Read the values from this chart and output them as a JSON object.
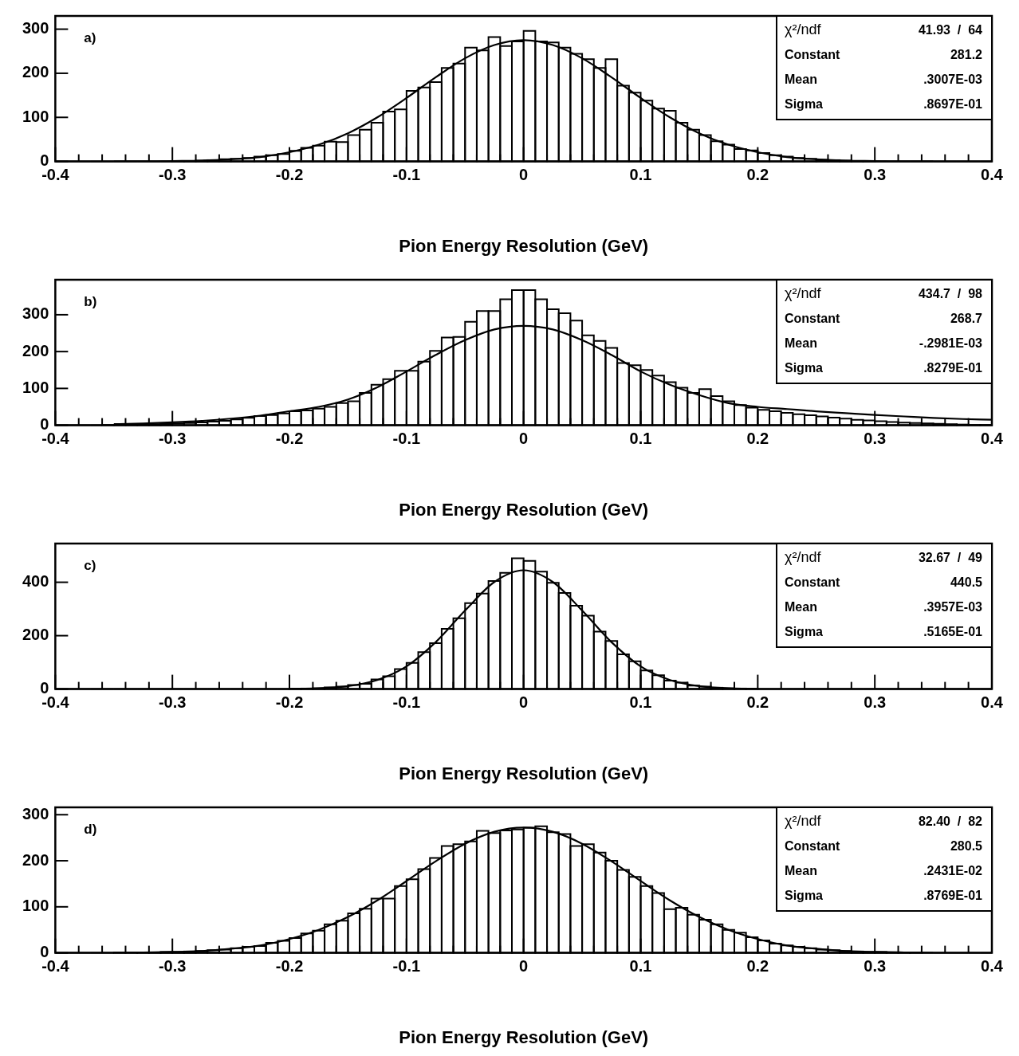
{
  "chart_data": [
    {
      "type": "histogram",
      "xlabel": "Pion Energy Resolution (GeV)",
      "annotations": [
        "a)",
        "χ²/ndf",
        "41.93  /  64",
        "Constant",
        "281.2",
        "Mean",
        ".3007E-03",
        "Sigma",
        ".8697E-01"
      ],
      "bins": [
        -0.4,
        -0.39,
        -0.38,
        -0.37,
        -0.36,
        -0.35,
        -0.34,
        -0.33,
        -0.32,
        -0.31,
        -0.3,
        -0.29,
        -0.28,
        -0.27,
        -0.26,
        -0.25,
        -0.24,
        -0.23,
        -0.22,
        -0.21,
        -0.2,
        -0.19,
        -0.18,
        -0.17,
        -0.16,
        -0.15,
        -0.14,
        -0.13,
        -0.12,
        -0.11,
        -0.1,
        -0.09,
        -0.08,
        -0.07,
        -0.06,
        -0.05,
        -0.04,
        -0.03,
        -0.02,
        -0.01,
        0,
        0.01,
        0.02,
        0.03,
        0.04,
        0.05,
        0.06,
        0.07,
        0.08,
        0.09,
        0.1,
        0.11,
        0.12,
        0.13,
        0.14,
        0.15,
        0.16,
        0.17,
        0.18,
        0.19,
        0.2,
        0.21,
        0.22,
        0.23,
        0.24,
        0.25,
        0.26,
        0.27,
        0.28,
        0.29,
        0.3,
        0.31,
        0.32,
        0.33,
        0.34,
        0.35,
        0.36,
        0.37,
        0.38,
        0.39,
        0.4
      ],
      "series": [
        {
          "type": "histogram",
          "color": "#000000",
          "values": [
            0,
            0,
            0,
            0,
            0,
            0,
            0,
            0,
            0,
            0,
            1,
            1,
            2,
            3,
            5,
            6,
            8,
            11,
            14,
            17,
            24,
            31,
            36,
            45,
            44,
            60,
            72,
            88,
            113,
            118,
            160,
            168,
            180,
            212,
            222,
            258,
            252,
            282,
            262,
            272,
            296,
            272,
            270,
            258,
            244,
            232,
            212,
            232,
            172,
            156,
            138,
            120,
            115,
            88,
            72,
            60,
            46,
            38,
            28,
            25,
            19,
            14,
            11,
            8,
            6,
            4,
            3,
            2,
            1,
            1,
            0,
            0,
            0,
            0,
            0,
            0,
            0,
            0,
            0,
            0
          ]
        },
        {
          "type": "line",
          "color": "#000000",
          "x": [
            -0.35,
            -0.325,
            -0.3,
            -0.275,
            -0.25,
            -0.225,
            -0.2,
            -0.175,
            -0.15,
            -0.125,
            -0.1,
            -0.075,
            -0.05,
            -0.025,
            0,
            0.025,
            0.05,
            0.075,
            0.1,
            0.125,
            0.15,
            0.175,
            0.2,
            0.225,
            0.25,
            0.275,
            0.3,
            0.325,
            0.35
          ],
          "values": [
            0,
            0,
            1,
            2,
            5,
            10,
            21,
            38,
            64,
            100,
            144,
            191,
            234,
            264,
            275,
            264,
            234,
            191,
            144,
            100,
            64,
            38,
            21,
            10,
            5,
            2,
            1,
            0,
            0
          ]
        }
      ],
      "xlim": [
        -0.4,
        0.4
      ],
      "xticks": [
        -0.4,
        {
          "value": -0.38,
          "label": null
        },
        {
          "value": -0.36,
          "label": null
        },
        {
          "value": -0.34,
          "label": null
        },
        {
          "value": -0.32,
          "label": null
        },
        -0.3,
        {
          "value": -0.28,
          "label": null
        },
        {
          "value": -0.26,
          "label": null
        },
        {
          "value": -0.24,
          "label": null
        },
        {
          "value": -0.22,
          "label": null
        },
        -0.2,
        {
          "value": -0.18,
          "label": null
        },
        {
          "value": -0.16,
          "label": null
        },
        {
          "value": -0.14,
          "label": null
        },
        {
          "value": -0.12,
          "label": null
        },
        -0.1,
        {
          "value": -0.08,
          "label": null
        },
        {
          "value": -0.06,
          "label": null
        },
        {
          "value": -0.04,
          "label": null
        },
        {
          "value": -0.02,
          "label": null
        },
        0,
        {
          "value": 0.02,
          "label": null
        },
        {
          "value": 0.04,
          "label": null
        },
        {
          "value": 0.06,
          "label": null
        },
        {
          "value": 0.08,
          "label": null
        },
        0.1,
        {
          "value": 0.12,
          "label": null
        },
        {
          "value": 0.14,
          "label": null
        },
        {
          "value": 0.16,
          "label": null
        },
        {
          "value": 0.18,
          "label": null
        },
        0.2,
        {
          "value": 0.22,
          "label": null
        },
        {
          "value": 0.24,
          "label": null
        },
        {
          "value": 0.26,
          "label": null
        },
        {
          "value": 0.28,
          "label": null
        },
        0.3,
        {
          "value": 0.32,
          "label": null
        },
        {
          "value": 0.34,
          "label": null
        },
        {
          "value": 0.36,
          "label": null
        },
        {
          "value": 0.38,
          "label": null
        },
        0.4
      ],
      "ylim": [
        0,
        330
      ],
      "yticks": [
        0,
        100,
        200,
        300
      ]
    },
    {
      "type": "histogram",
      "xlabel": "Pion Energy Resolution (GeV)",
      "annotations": [
        "b)",
        "χ²/ndf",
        "434.7  /  98",
        "Constant",
        "268.7",
        "Mean",
        "-.2981E-03",
        "Sigma",
        ".8279E-01"
      ],
      "bins": [
        -0.4,
        -0.39,
        -0.38,
        -0.37,
        -0.36,
        -0.35,
        -0.34,
        -0.33,
        -0.32,
        -0.31,
        -0.3,
        -0.29,
        -0.28,
        -0.27,
        -0.26,
        -0.25,
        -0.24,
        -0.23,
        -0.22,
        -0.21,
        -0.2,
        -0.19,
        -0.18,
        -0.17,
        -0.16,
        -0.15,
        -0.14,
        -0.13,
        -0.12,
        -0.11,
        -0.1,
        -0.09,
        -0.08,
        -0.07,
        -0.06,
        -0.05,
        -0.04,
        -0.03,
        -0.02,
        -0.01,
        0,
        0.01,
        0.02,
        0.03,
        0.04,
        0.05,
        0.06,
        0.07,
        0.08,
        0.09,
        0.1,
        0.11,
        0.12,
        0.13,
        0.14,
        0.15,
        0.16,
        0.17,
        0.18,
        0.19,
        0.2,
        0.21,
        0.22,
        0.23,
        0.24,
        0.25,
        0.26,
        0.27,
        0.28,
        0.29,
        0.3,
        0.31,
        0.32,
        0.33,
        0.34,
        0.35,
        0.36,
        0.37,
        0.38,
        0.39,
        0.4
      ],
      "series": [
        {
          "type": "histogram",
          "color": "#000000",
          "values": [
            0,
            0,
            0,
            0,
            1,
            1,
            2,
            2,
            3,
            4,
            5,
            6,
            8,
            10,
            12,
            16,
            20,
            25,
            28,
            32,
            38,
            40,
            45,
            50,
            60,
            65,
            88,
            110,
            125,
            148,
            148,
            173,
            202,
            238,
            240,
            281,
            310,
            310,
            342,
            367,
            367,
            342,
            315,
            304,
            284,
            244,
            229,
            210,
            169,
            163,
            150,
            135,
            117,
            102,
            88,
            98,
            79,
            65,
            55,
            48,
            42,
            38,
            34,
            30,
            27,
            24,
            21,
            18,
            15,
            13,
            11,
            9,
            7,
            6,
            5,
            4,
            3,
            2,
            1,
            1
          ]
        },
        {
          "type": "line",
          "color": "#000000",
          "x": [
            -0.35,
            -0.325,
            -0.3,
            -0.275,
            -0.25,
            -0.225,
            -0.2,
            -0.175,
            -0.15,
            -0.125,
            -0.1,
            -0.075,
            -0.05,
            -0.025,
            0,
            0.025,
            0.05,
            0.075,
            0.1,
            0.125,
            0.15,
            0.175,
            0.2,
            0.225,
            0.25,
            0.275,
            0.3,
            0.325,
            0.35,
            0.375,
            0.4
          ],
          "values": [
            3,
            5,
            8,
            12,
            18,
            26,
            38,
            50,
            70,
            103,
            146,
            191,
            231,
            260,
            270,
            260,
            231,
            191,
            146,
            110,
            82,
            60,
            50,
            44,
            38,
            33,
            28,
            24,
            20,
            17,
            15
          ]
        }
      ],
      "xlim": [
        -0.4,
        0.4
      ],
      "xticks": [
        -0.4,
        {
          "value": -0.38,
          "label": null
        },
        {
          "value": -0.36,
          "label": null
        },
        {
          "value": -0.34,
          "label": null
        },
        {
          "value": -0.32,
          "label": null
        },
        -0.3,
        {
          "value": -0.28,
          "label": null
        },
        {
          "value": -0.26,
          "label": null
        },
        {
          "value": -0.24,
          "label": null
        },
        {
          "value": -0.22,
          "label": null
        },
        -0.2,
        {
          "value": -0.18,
          "label": null
        },
        {
          "value": -0.16,
          "label": null
        },
        {
          "value": -0.14,
          "label": null
        },
        {
          "value": -0.12,
          "label": null
        },
        -0.1,
        {
          "value": -0.08,
          "label": null
        },
        {
          "value": -0.06,
          "label": null
        },
        {
          "value": -0.04,
          "label": null
        },
        {
          "value": -0.02,
          "label": null
        },
        0,
        {
          "value": 0.02,
          "label": null
        },
        {
          "value": 0.04,
          "label": null
        },
        {
          "value": 0.06,
          "label": null
        },
        {
          "value": 0.08,
          "label": null
        },
        0.1,
        {
          "value": 0.12,
          "label": null
        },
        {
          "value": 0.14,
          "label": null
        },
        {
          "value": 0.16,
          "label": null
        },
        {
          "value": 0.18,
          "label": null
        },
        0.2,
        {
          "value": 0.22,
          "label": null
        },
        {
          "value": 0.24,
          "label": null
        },
        {
          "value": 0.26,
          "label": null
        },
        {
          "value": 0.28,
          "label": null
        },
        0.3,
        {
          "value": 0.32,
          "label": null
        },
        {
          "value": 0.34,
          "label": null
        },
        {
          "value": 0.36,
          "label": null
        },
        {
          "value": 0.38,
          "label": null
        },
        0.4
      ],
      "ylim": [
        0,
        395
      ],
      "yticks": [
        0,
        100,
        200,
        300
      ]
    },
    {
      "type": "histogram",
      "xlabel": "Pion Energy Resolution (GeV)",
      "annotations": [
        "c)",
        "χ²/ndf",
        "32.67  /  49",
        "Constant",
        "440.5",
        "Mean",
        ".3957E-03",
        "Sigma",
        ".5165E-01"
      ],
      "bins": [
        -0.4,
        -0.39,
        -0.38,
        -0.37,
        -0.36,
        -0.35,
        -0.34,
        -0.33,
        -0.32,
        -0.31,
        -0.3,
        -0.29,
        -0.28,
        -0.27,
        -0.26,
        -0.25,
        -0.24,
        -0.23,
        -0.22,
        -0.21,
        -0.2,
        -0.19,
        -0.18,
        -0.17,
        -0.16,
        -0.15,
        -0.14,
        -0.13,
        -0.12,
        -0.11,
        -0.1,
        -0.09,
        -0.08,
        -0.07,
        -0.06,
        -0.05,
        -0.04,
        -0.03,
        -0.02,
        -0.01,
        0,
        0.01,
        0.02,
        0.03,
        0.04,
        0.05,
        0.06,
        0.07,
        0.08,
        0.09,
        0.1,
        0.11,
        0.12,
        0.13,
        0.14,
        0.15,
        0.16,
        0.17,
        0.18,
        0.19,
        0.2,
        0.21,
        0.22,
        0.23,
        0.24,
        0.25,
        0.26,
        0.27,
        0.28,
        0.29,
        0.3,
        0.31,
        0.32,
        0.33,
        0.34,
        0.35,
        0.36,
        0.37,
        0.38,
        0.39,
        0.4
      ],
      "series": [
        {
          "type": "histogram",
          "color": "#000000",
          "values": [
            0,
            0,
            0,
            0,
            0,
            0,
            0,
            0,
            0,
            0,
            0,
            0,
            0,
            0,
            0,
            0,
            0,
            0,
            0,
            0,
            1,
            2,
            3,
            6,
            9,
            15,
            20,
            36,
            48,
            75,
            98,
            138,
            172,
            226,
            265,
            322,
            358,
            405,
            435,
            490,
            480,
            440,
            398,
            360,
            312,
            275,
            215,
            180,
            130,
            104,
            70,
            52,
            32,
            24,
            13,
            9,
            5,
            3,
            2,
            1,
            0,
            0,
            0,
            0,
            0,
            0,
            0,
            0,
            0,
            0,
            0,
            0,
            0,
            0,
            0,
            0,
            0,
            0,
            0,
            0
          ]
        },
        {
          "type": "line",
          "color": "#000000",
          "x": [
            -0.2,
            -0.175,
            -0.15,
            -0.125,
            -0.1,
            -0.075,
            -0.05,
            -0.025,
            0,
            0.025,
            0.05,
            0.075,
            0.1,
            0.125,
            0.15,
            0.175,
            0.2
          ],
          "values": [
            1,
            3,
            11,
            34,
            85,
            176,
            294,
            401,
            445,
            401,
            294,
            176,
            85,
            34,
            11,
            3,
            1
          ]
        }
      ],
      "xlim": [
        -0.4,
        0.4
      ],
      "xticks": [
        -0.4,
        {
          "value": -0.38,
          "label": null
        },
        {
          "value": -0.36,
          "label": null
        },
        {
          "value": -0.34,
          "label": null
        },
        {
          "value": -0.32,
          "label": null
        },
        -0.3,
        {
          "value": -0.28,
          "label": null
        },
        {
          "value": -0.26,
          "label": null
        },
        {
          "value": -0.24,
          "label": null
        },
        {
          "value": -0.22,
          "label": null
        },
        -0.2,
        {
          "value": -0.18,
          "label": null
        },
        {
          "value": -0.16,
          "label": null
        },
        {
          "value": -0.14,
          "label": null
        },
        {
          "value": -0.12,
          "label": null
        },
        -0.1,
        {
          "value": -0.08,
          "label": null
        },
        {
          "value": -0.06,
          "label": null
        },
        {
          "value": -0.04,
          "label": null
        },
        {
          "value": -0.02,
          "label": null
        },
        0,
        {
          "value": 0.02,
          "label": null
        },
        {
          "value": 0.04,
          "label": null
        },
        {
          "value": 0.06,
          "label": null
        },
        {
          "value": 0.08,
          "label": null
        },
        0.1,
        {
          "value": 0.12,
          "label": null
        },
        {
          "value": 0.14,
          "label": null
        },
        {
          "value": 0.16,
          "label": null
        },
        {
          "value": 0.18,
          "label": null
        },
        0.2,
        {
          "value": 0.22,
          "label": null
        },
        {
          "value": 0.24,
          "label": null
        },
        {
          "value": 0.26,
          "label": null
        },
        {
          "value": 0.28,
          "label": null
        },
        0.3,
        {
          "value": 0.32,
          "label": null
        },
        {
          "value": 0.34,
          "label": null
        },
        {
          "value": 0.36,
          "label": null
        },
        {
          "value": 0.38,
          "label": null
        },
        0.4
      ],
      "ylim": [
        0,
        545
      ],
      "yticks": [
        0,
        200,
        400
      ]
    },
    {
      "type": "histogram",
      "xlabel": "Pion Energy Resolution (GeV)",
      "annotations": [
        "d)",
        "χ²/ndf",
        "82.40  /  82",
        "Constant",
        "280.5",
        "Mean",
        ".2431E-02",
        "Sigma",
        ".8769E-01"
      ],
      "bins": [
        -0.4,
        -0.39,
        -0.38,
        -0.37,
        -0.36,
        -0.35,
        -0.34,
        -0.33,
        -0.32,
        -0.31,
        -0.3,
        -0.29,
        -0.28,
        -0.27,
        -0.26,
        -0.25,
        -0.24,
        -0.23,
        -0.22,
        -0.21,
        -0.2,
        -0.19,
        -0.18,
        -0.17,
        -0.16,
        -0.15,
        -0.14,
        -0.13,
        -0.12,
        -0.11,
        -0.1,
        -0.09,
        -0.08,
        -0.07,
        -0.06,
        -0.05,
        -0.04,
        -0.03,
        -0.02,
        -0.01,
        0,
        0.01,
        0.02,
        0.03,
        0.04,
        0.05,
        0.06,
        0.07,
        0.08,
        0.09,
        0.1,
        0.11,
        0.12,
        0.13,
        0.14,
        0.15,
        0.16,
        0.17,
        0.18,
        0.19,
        0.2,
        0.21,
        0.22,
        0.23,
        0.24,
        0.25,
        0.26,
        0.27,
        0.28,
        0.29,
        0.3,
        0.31,
        0.32,
        0.33,
        0.34,
        0.35,
        0.36,
        0.37,
        0.38,
        0.39,
        0.4
      ],
      "series": [
        {
          "type": "histogram",
          "color": "#000000",
          "values": [
            0,
            0,
            0,
            0,
            0,
            1,
            1,
            1,
            1,
            2,
            2,
            3,
            4,
            6,
            7,
            10,
            13,
            15,
            22,
            26,
            32,
            42,
            48,
            62,
            70,
            86,
            96,
            118,
            118,
            145,
            160,
            182,
            206,
            232,
            236,
            242,
            265,
            260,
            266,
            268,
            272,
            275,
            262,
            258,
            232,
            236,
            218,
            200,
            180,
            165,
            145,
            130,
            95,
            98,
            83,
            72,
            62,
            50,
            44,
            34,
            27,
            20,
            16,
            13,
            10,
            7,
            6,
            4,
            3,
            2,
            2,
            1,
            1,
            1,
            0,
            0,
            0,
            0,
            0,
            0
          ]
        },
        {
          "type": "line",
          "color": "#000000",
          "x": [
            -0.35,
            -0.325,
            -0.3,
            -0.275,
            -0.25,
            -0.225,
            -0.2,
            -0.175,
            -0.15,
            -0.125,
            -0.1,
            -0.075,
            -0.05,
            -0.025,
            0,
            0.025,
            0.05,
            0.075,
            0.1,
            0.125,
            0.15,
            0.175,
            0.2,
            0.225,
            0.25,
            0.275,
            0.3,
            0.325,
            0.35
          ],
          "values": [
            0,
            1,
            2,
            4,
            9,
            16,
            30,
            50,
            78,
            114,
            156,
            199,
            237,
            263,
            272,
            263,
            237,
            199,
            156,
            114,
            78,
            50,
            30,
            16,
            9,
            4,
            2,
            1,
            0
          ]
        }
      ],
      "xlim": [
        -0.4,
        0.4
      ],
      "xticks": [
        -0.4,
        {
          "value": -0.38,
          "label": null
        },
        {
          "value": -0.36,
          "label": null
        },
        {
          "value": -0.34,
          "label": null
        },
        {
          "value": -0.32,
          "label": null
        },
        -0.3,
        {
          "value": -0.28,
          "label": null
        },
        {
          "value": -0.26,
          "label": null
        },
        {
          "value": -0.24,
          "label": null
        },
        {
          "value": -0.22,
          "label": null
        },
        -0.2,
        {
          "value": -0.18,
          "label": null
        },
        {
          "value": -0.16,
          "label": null
        },
        {
          "value": -0.14,
          "label": null
        },
        {
          "value": -0.12,
          "label": null
        },
        -0.1,
        {
          "value": -0.08,
          "label": null
        },
        {
          "value": -0.06,
          "label": null
        },
        {
          "value": -0.04,
          "label": null
        },
        {
          "value": -0.02,
          "label": null
        },
        0,
        {
          "value": 0.02,
          "label": null
        },
        {
          "value": 0.04,
          "label": null
        },
        {
          "value": 0.06,
          "label": null
        },
        {
          "value": 0.08,
          "label": null
        },
        0.1,
        {
          "value": 0.12,
          "label": null
        },
        {
          "value": 0.14,
          "label": null
        },
        {
          "value": 0.16,
          "label": null
        },
        {
          "value": 0.18,
          "label": null
        },
        0.2,
        {
          "value": 0.22,
          "label": null
        },
        {
          "value": 0.24,
          "label": null
        },
        {
          "value": 0.26,
          "label": null
        },
        {
          "value": 0.28,
          "label": null
        },
        0.3,
        {
          "value": 0.32,
          "label": null
        },
        {
          "value": 0.34,
          "label": null
        },
        {
          "value": 0.36,
          "label": null
        },
        {
          "value": 0.38,
          "label": null
        },
        0.4
      ],
      "ylim": [
        0,
        316
      ],
      "yticks": [
        0,
        100,
        200,
        300
      ]
    }
  ]
}
